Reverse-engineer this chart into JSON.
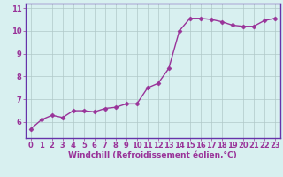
{
  "x": [
    0,
    1,
    2,
    3,
    4,
    5,
    6,
    7,
    8,
    9,
    10,
    11,
    12,
    13,
    14,
    15,
    16,
    17,
    18,
    19,
    20,
    21,
    22,
    23
  ],
  "y": [
    5.7,
    6.1,
    6.3,
    6.2,
    6.5,
    6.5,
    6.45,
    6.6,
    6.65,
    6.8,
    6.8,
    7.5,
    7.7,
    8.35,
    10.0,
    10.55,
    10.55,
    10.5,
    10.4,
    10.25,
    10.2,
    10.2,
    10.45,
    10.55
  ],
  "line_color": "#993399",
  "marker": "D",
  "marker_size": 2.5,
  "xlabel": "Windchill (Refroidissement éolien,°C)",
  "ylabel": "",
  "ylim": [
    5.3,
    11.2
  ],
  "xlim": [
    -0.5,
    23.5
  ],
  "yticks": [
    6,
    7,
    8,
    9,
    10,
    11
  ],
  "xticks": [
    0,
    1,
    2,
    3,
    4,
    5,
    6,
    7,
    8,
    9,
    10,
    11,
    12,
    13,
    14,
    15,
    16,
    17,
    18,
    19,
    20,
    21,
    22,
    23
  ],
  "background_color": "#d8f0f0",
  "grid_color": "#b0c8c8",
  "font_color": "#993399",
  "xlabel_fontsize": 6.5,
  "tick_fontsize": 6,
  "linewidth": 1.0
}
